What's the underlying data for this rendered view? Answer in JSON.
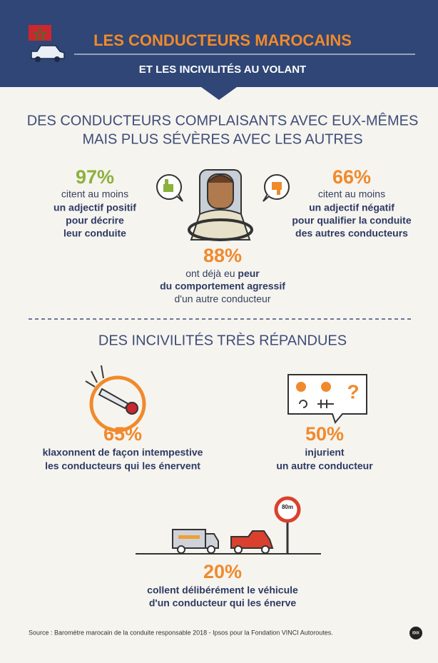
{
  "header": {
    "title": "LES CONDUCTEURS MAROCAINS",
    "subtitle": "ET LES INCIVILITÉS AU VOLANT"
  },
  "section1": {
    "heading": [
      "DES CONDUCTEURS COMPLAISANTS AVEC EUX-MÊMES",
      "MAIS PLUS SÉVÈRES AVEC LES AUTRES"
    ],
    "positive": {
      "value": "97%",
      "lines": [
        "citent au moins",
        "un adjectif positif",
        "pour décrire",
        "leur conduite"
      ]
    },
    "negative": {
      "value": "66%",
      "lines": [
        "citent au moins",
        "un adjectif négatif",
        "pour qualifier la conduite",
        "des autres conducteurs"
      ]
    },
    "fear": {
      "value": "88%",
      "lines": [
        "ont déjà eu",
        "peur",
        "du comportement agressif",
        "d'un autre conducteur"
      ]
    }
  },
  "section2": {
    "heading": "DES INCIVILITÉS TRÈS RÉPANDUES",
    "honk": {
      "value": "65%",
      "lines": [
        "klaxonnent de façon intempestive",
        "les conducteurs qui les énervent"
      ]
    },
    "insult": {
      "value": "50%",
      "lines": [
        "injurient",
        "un autre conducteur"
      ]
    },
    "tailgate": {
      "value": "20%",
      "lines": [
        "collent délibérément le véhicule",
        "d'un conducteur qui les énerve"
      ]
    }
  },
  "footer": {
    "source": "Source : Baromètre marocain de la conduite responsable 2018 - Ipsos pour la Fondation VINCI Autoroutes.",
    "logo": "IDIX"
  }
}
